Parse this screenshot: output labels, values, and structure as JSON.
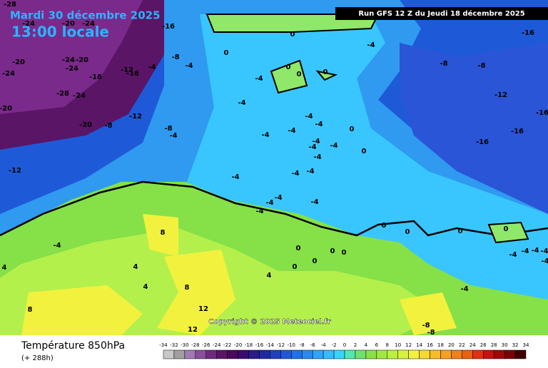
{
  "header": {
    "date": "Mardi 30 décembre 2025",
    "time": "13:00 locale",
    "run": "Run GFS 12 Z du Jeudi 18 décembre 2025"
  },
  "map": {
    "contour_labels": [
      -28,
      -16,
      -16,
      -24,
      -20,
      -24,
      -24,
      -20,
      -20,
      -24,
      -24,
      -16,
      -12,
      -16,
      -4,
      -8,
      -4,
      -4,
      -8,
      -8,
      -12,
      -16,
      -16,
      -16,
      -28,
      -24,
      -20,
      -20,
      -8,
      -12,
      -8,
      -4,
      -12,
      -4,
      4,
      8,
      8,
      4,
      4,
      8,
      12,
      12,
      4,
      0,
      0,
      0,
      0,
      0,
      -4,
      -4,
      -4,
      -4,
      -4,
      -4,
      -4,
      -4,
      -4,
      -4,
      -4,
      -4,
      -4,
      -4,
      -4,
      -4,
      -4,
      0,
      0,
      0,
      0,
      0,
      0,
      0,
      0,
      0,
      0,
      0,
      -4,
      -4,
      -4,
      -4,
      -4,
      -4,
      -8,
      -8
    ],
    "copyright": "Copyright © 2025 Meteociel.fr"
  },
  "footer": {
    "title": "Température 850hPa",
    "lead": "(+ 288h)",
    "scale": [
      -34,
      -32,
      -30,
      -28,
      -26,
      -24,
      -22,
      -20,
      -18,
      -16,
      -14,
      -12,
      -10,
      -8,
      -6,
      -4,
      -2,
      0,
      2,
      4,
      6,
      8,
      10,
      12,
      14,
      16,
      18,
      20,
      22,
      24,
      26,
      28,
      30,
      32,
      34
    ]
  }
}
